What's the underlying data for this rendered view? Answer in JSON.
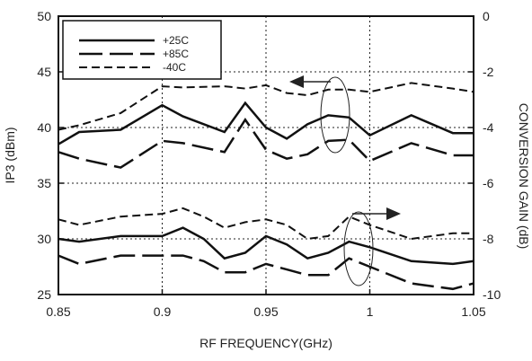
{
  "chart_data": {
    "type": "line",
    "xlabel": "RF FREQUENCY(GHz)",
    "ylabel_left": "IP3 (dBm)",
    "ylabel_right": "CONVERSION GAIN (dB)",
    "x_range": [
      0.85,
      1.05
    ],
    "y_left_range": [
      25,
      50
    ],
    "y_right_range": [
      -10,
      0
    ],
    "x_ticks": [
      "0.85",
      "0.9",
      "0.95",
      "1",
      "1.05"
    ],
    "x_tick_values": [
      0.85,
      0.9,
      0.95,
      1.0,
      1.05
    ],
    "y_left_ticks": [
      "25",
      "30",
      "35",
      "40",
      "45",
      "50"
    ],
    "y_left_tick_values": [
      25,
      30,
      35,
      40,
      45,
      50
    ],
    "y_right_ticks": [
      "-10",
      "-8",
      "-6",
      "-4",
      "-2",
      "0"
    ],
    "y_right_tick_values": [
      -10,
      -8,
      -6,
      -4,
      -2,
      0
    ],
    "grid": "dotted",
    "legend_position": "top-left",
    "series": [
      {
        "name": "+25C",
        "axis": "left",
        "group": "IP3",
        "style": "solid",
        "x": [
          0.85,
          0.86,
          0.88,
          0.9,
          0.91,
          0.93,
          0.94,
          0.95,
          0.96,
          0.97,
          0.98,
          0.99,
          1.0,
          1.02,
          1.04,
          1.05
        ],
        "y": [
          38.5,
          39.6,
          39.8,
          42.0,
          41.0,
          39.6,
          42.2,
          40.0,
          39.0,
          40.3,
          41.1,
          40.9,
          39.3,
          41.1,
          39.5,
          39.5
        ]
      },
      {
        "name": "+85C",
        "axis": "left",
        "group": "IP3",
        "style": "long-dash",
        "x": [
          0.85,
          0.86,
          0.88,
          0.9,
          0.91,
          0.93,
          0.94,
          0.95,
          0.96,
          0.97,
          0.98,
          0.99,
          1.0,
          1.02,
          1.04,
          1.05
        ],
        "y": [
          37.8,
          37.2,
          36.4,
          38.8,
          38.6,
          37.8,
          40.7,
          38.0,
          37.2,
          37.6,
          38.8,
          38.9,
          37.0,
          38.6,
          37.5,
          37.5
        ]
      },
      {
        "name": "-40C",
        "axis": "left",
        "group": "IP3",
        "style": "short-dash",
        "x": [
          0.85,
          0.86,
          0.88,
          0.9,
          0.91,
          0.93,
          0.94,
          0.95,
          0.96,
          0.97,
          0.98,
          0.99,
          1.0,
          1.02,
          1.04,
          1.05
        ],
        "y": [
          39.8,
          40.2,
          41.3,
          43.7,
          43.6,
          43.7,
          43.5,
          43.8,
          43.1,
          42.9,
          43.4,
          43.4,
          43.2,
          44.0,
          43.5,
          43.2
        ]
      },
      {
        "name": "+25C",
        "axis": "right",
        "group": "Gain",
        "style": "solid",
        "x": [
          0.85,
          0.86,
          0.88,
          0.9,
          0.91,
          0.92,
          0.93,
          0.94,
          0.95,
          0.96,
          0.97,
          0.98,
          0.99,
          1.0,
          1.02,
          1.04,
          1.05
        ],
        "y": [
          -8.0,
          -8.1,
          -7.9,
          -7.9,
          -7.6,
          -8.0,
          -8.7,
          -8.5,
          -7.9,
          -8.2,
          -8.7,
          -8.5,
          -8.1,
          -8.3,
          -8.8,
          -8.9,
          -8.8
        ]
      },
      {
        "name": "+85C",
        "axis": "right",
        "group": "Gain",
        "style": "long-dash",
        "x": [
          0.85,
          0.86,
          0.88,
          0.9,
          0.91,
          0.92,
          0.93,
          0.94,
          0.95,
          0.96,
          0.97,
          0.98,
          0.99,
          1.0,
          1.02,
          1.04,
          1.05
        ],
        "y": [
          -8.6,
          -8.9,
          -8.6,
          -8.6,
          -8.6,
          -8.8,
          -9.2,
          -9.2,
          -8.9,
          -9.1,
          -9.3,
          -9.3,
          -8.7,
          -9.0,
          -9.6,
          -9.8,
          -9.6
        ]
      },
      {
        "name": "-40C",
        "axis": "right",
        "group": "Gain",
        "style": "short-dash",
        "x": [
          0.85,
          0.86,
          0.88,
          0.9,
          0.91,
          0.92,
          0.93,
          0.94,
          0.95,
          0.96,
          0.97,
          0.98,
          0.99,
          1.0,
          1.02,
          1.04,
          1.05
        ],
        "y": [
          -7.3,
          -7.5,
          -7.2,
          -7.1,
          -6.9,
          -7.2,
          -7.6,
          -7.4,
          -7.3,
          -7.5,
          -8.0,
          -7.9,
          -7.2,
          -7.5,
          -8.0,
          -7.8,
          -7.8
        ]
      }
    ]
  }
}
